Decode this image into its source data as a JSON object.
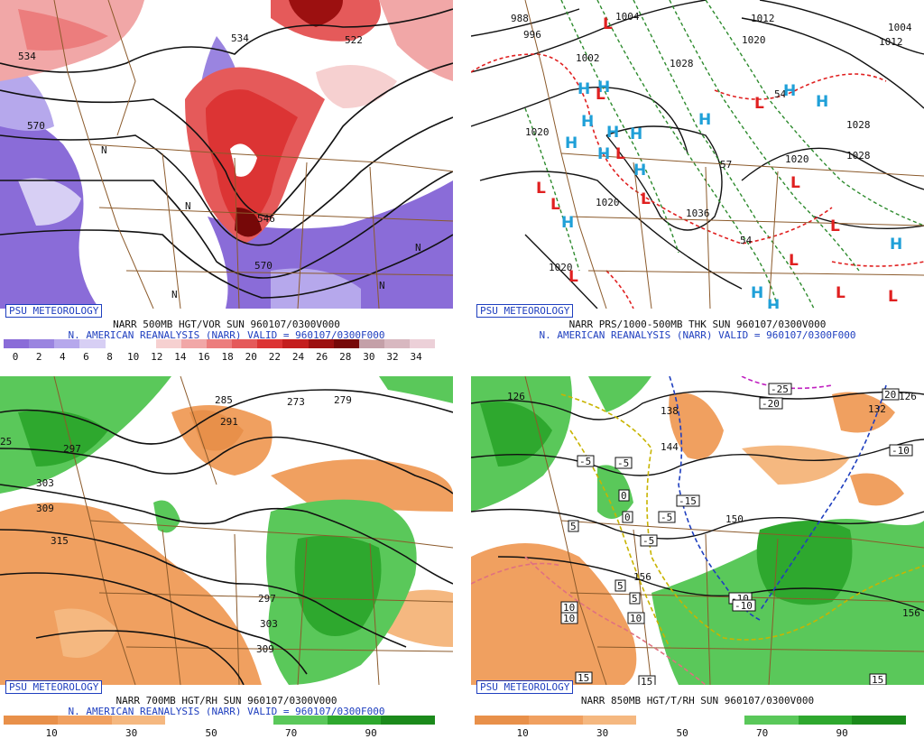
{
  "brand_tag": "PSU METEOROLOGY",
  "colors": {
    "brand": "#1f3fbf",
    "high": "#1fa0d8",
    "low": "#e02020",
    "border": "#8b5a2b"
  },
  "panels": [
    {
      "id": "vor500",
      "caption_line1": "NARR 500MB HGT/VOR SUN 960107/0300V000",
      "caption_line2": "N. AMERICAN REANALYSIS (NARR) VALID = 960107/0300F000",
      "colorbar": [
        "#8a6cd8",
        "#9a84e0",
        "#b6a8ec",
        "#d7cff4",
        "#ffffff",
        "#ffffff",
        "#f6d0d0",
        "#f1a7a7",
        "#ec7d7d",
        "#e55a5a",
        "#dc3434",
        "#c41e1e",
        "#9c1010",
        "#760808",
        "#c4a0a8",
        "#d8b8c0",
        "#ecd0d8"
      ],
      "colorbar_ticks": [
        "0",
        "2",
        "4",
        "6",
        "8",
        "10",
        "12",
        "14",
        "16",
        "18",
        "20",
        "22",
        "24",
        "26",
        "28",
        "30",
        "32",
        "34"
      ],
      "contour_labels": [
        "534",
        "522",
        "546",
        "570",
        "534",
        "570"
      ],
      "vort_labels": [
        "N",
        "N",
        "N",
        "N",
        "N"
      ]
    },
    {
      "id": "prs",
      "caption_line1": "NARR PRS/1000-500MB THK SUN 960107/0300V000",
      "caption_line2": "N. AMERICAN REANALYSIS (NARR) VALID = 960107/0300F000",
      "isobar_labels": [
        "988",
        "996",
        "1004",
        "1012",
        "1020",
        "1020",
        "1028",
        "1028",
        "1020",
        "1020",
        "1036",
        "1028",
        "1002",
        "1004",
        "1012",
        "1020",
        "54",
        "57",
        "54"
      ],
      "high_symbol": "H",
      "low_symbol": "L"
    },
    {
      "id": "rh700",
      "caption_line1": "NARR 700MB HGT/RH SUN 960107/0300V000",
      "caption_line2": "N. AMERICAN REANALYSIS (NARR) VALID = 960107/0300F000",
      "colorbar": [
        "#e8904a",
        "#f0a060",
        "#f5b880",
        "#ffffff",
        "#ffffff",
        "#5ac85a",
        "#2ea82e",
        "#1b8a1b"
      ],
      "colorbar_ticks": [
        "10",
        "30",
        "50",
        "70",
        "90"
      ],
      "height_labels": [
        "285",
        "291",
        "273",
        "279",
        "297",
        "303",
        "309",
        "315",
        "297",
        "303",
        "309",
        "25"
      ]
    },
    {
      "id": "t850",
      "caption_line1": "NARR 850MB HGT/T/RH SUN 960107/0300V000",
      "caption_line2": "",
      "colorbar": [
        "#e8904a",
        "#f0a060",
        "#f5b880",
        "#ffffff",
        "#ffffff",
        "#5ac85a",
        "#2ea82e",
        "#1b8a1b"
      ],
      "colorbar_ticks": [
        "10",
        "30",
        "50",
        "70",
        "90"
      ],
      "height_labels": [
        "126",
        "138",
        "144",
        "150",
        "156",
        "156",
        "132",
        "126"
      ],
      "temp_labels": [
        "-25",
        "-20",
        "-15",
        "-10",
        "-10",
        "-5",
        "-5",
        "-5",
        "-5",
        "0",
        "0",
        "5",
        "5",
        "5",
        "10",
        "10",
        "10",
        "15",
        "15",
        "15",
        "20",
        "-10"
      ]
    }
  ]
}
